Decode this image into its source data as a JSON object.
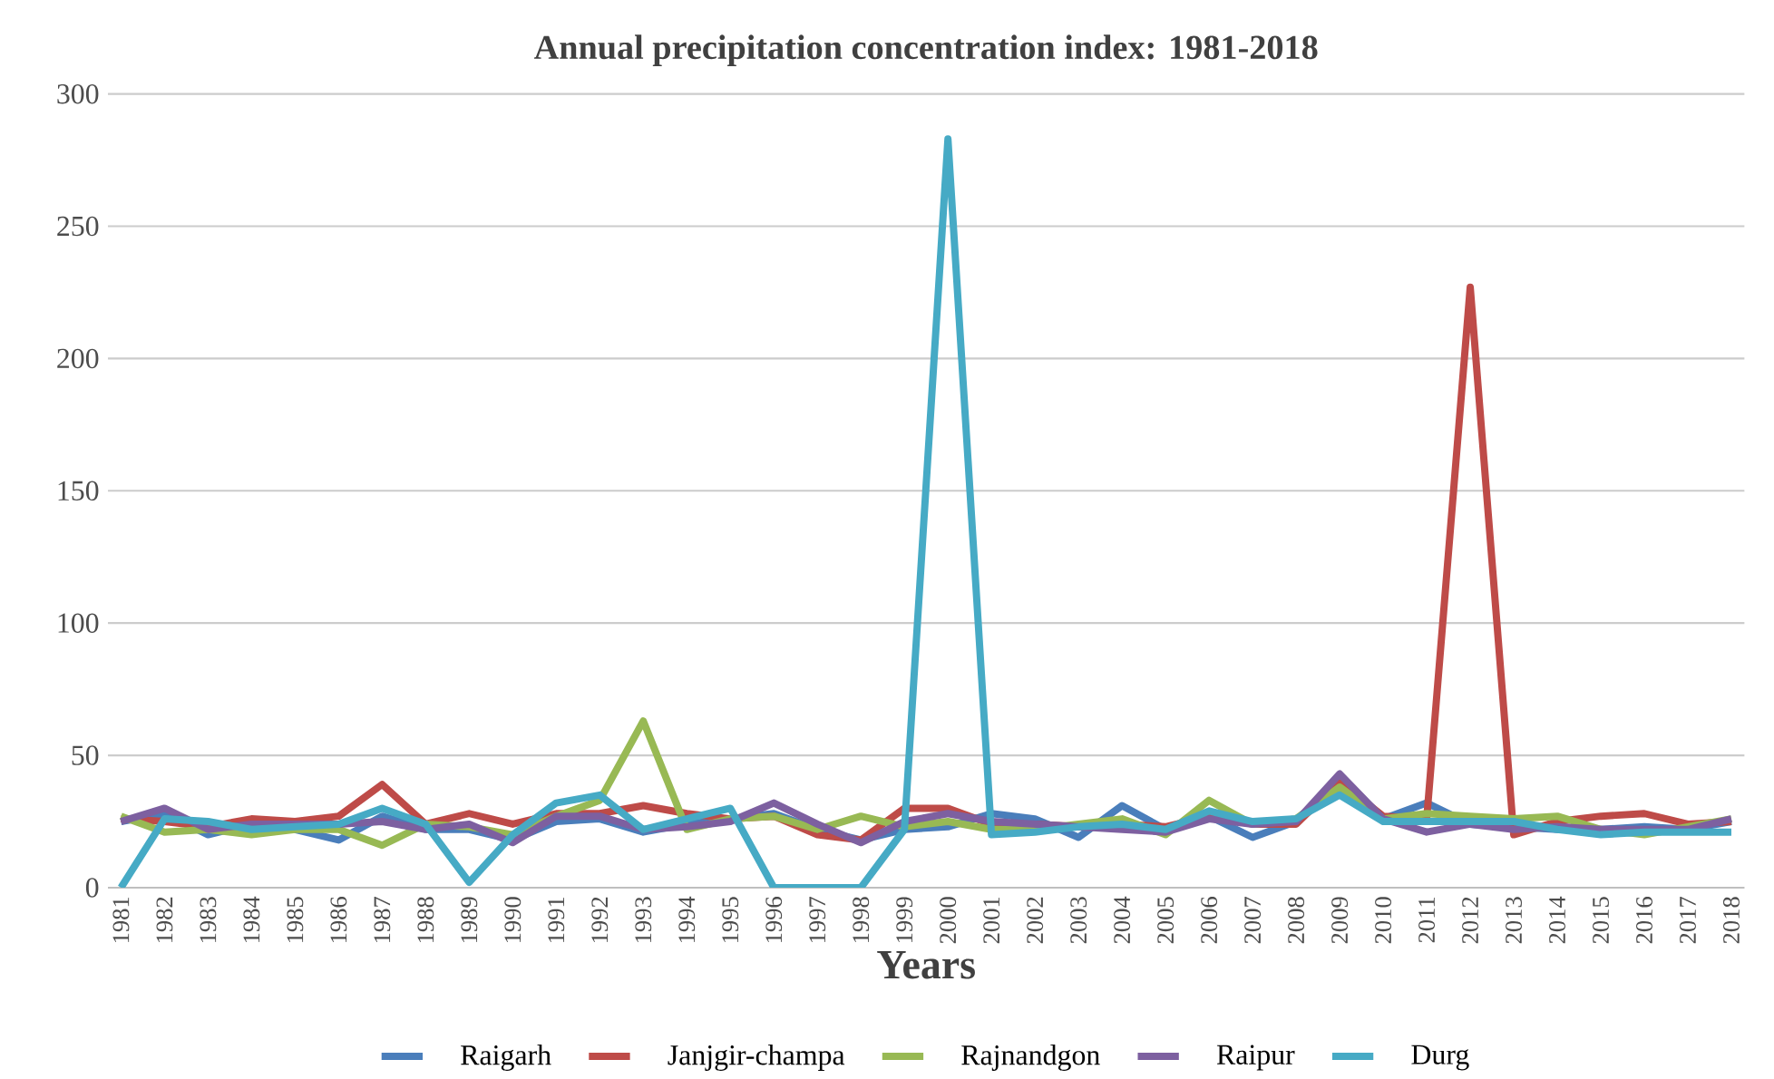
{
  "chart_data": {
    "type": "line",
    "title": "Annual precipitation concentration index: 1981-2018",
    "xlabel": "Years",
    "categories": [
      "1981",
      "1982",
      "1983",
      "1984",
      "1985",
      "1986",
      "1987",
      "1988",
      "1989",
      "1990",
      "1991",
      "1992",
      "1993",
      "1994",
      "1995",
      "1996",
      "1997",
      "1998",
      "1999",
      "2000",
      "2001",
      "2002",
      "2003",
      "2004",
      "2005",
      "2006",
      "2007",
      "2008",
      "2009",
      "2010",
      "2011",
      "2012",
      "2013",
      "2014",
      "2015",
      "2016",
      "2017",
      "2018"
    ],
    "series": [
      {
        "name": "Raigarh",
        "color": "#4a7ebb",
        "values": [
          25,
          28,
          20,
          24,
          22,
          18,
          27,
          22,
          22,
          18,
          25,
          26,
          21,
          24,
          26,
          28,
          22,
          18,
          22,
          23,
          28,
          26,
          19,
          31,
          22,
          27,
          19,
          25,
          38,
          26,
          32,
          24,
          23,
          22,
          22,
          23,
          22,
          25
        ]
      },
      {
        "name": "Janjgir-champa",
        "color": "#be4b48",
        "values": [
          26,
          25,
          23,
          26,
          25,
          27,
          39,
          24,
          28,
          24,
          28,
          28,
          31,
          28,
          26,
          27,
          20,
          18,
          30,
          30,
          24,
          24,
          23,
          24,
          23,
          27,
          24,
          24,
          40,
          27,
          26,
          227,
          20,
          25,
          27,
          28,
          24,
          25
        ]
      },
      {
        "name": "Rajnandgon",
        "color": "#98b954",
        "values": [
          27,
          21,
          22,
          20,
          22,
          22,
          16,
          24,
          23,
          20,
          27,
          33,
          63,
          22,
          26,
          27,
          22,
          27,
          23,
          25,
          22,
          22,
          24,
          26,
          20,
          33,
          24,
          26,
          38,
          26,
          28,
          27,
          26,
          27,
          22,
          20,
          23,
          26
        ]
      },
      {
        "name": "Raipur",
        "color": "#7d60a0",
        "values": [
          25,
          30,
          22,
          24,
          24,
          24,
          25,
          22,
          24,
          17,
          27,
          27,
          22,
          23,
          25,
          32,
          24,
          17,
          25,
          28,
          25,
          24,
          23,
          22,
          21,
          26,
          24,
          25,
          43,
          26,
          21,
          24,
          22,
          23,
          22,
          22,
          22,
          26
        ]
      },
      {
        "name": "Durg",
        "color": "#46aac5",
        "values": [
          0,
          26,
          25,
          22,
          23,
          24,
          30,
          24,
          2,
          20,
          32,
          35,
          22,
          26,
          30,
          0,
          0,
          0,
          22,
          283,
          20,
          21,
          23,
          24,
          22,
          29,
          25,
          26,
          35,
          25,
          25,
          25,
          25,
          22,
          20,
          21,
          21,
          21
        ]
      }
    ],
    "ylim": [
      0,
      300
    ],
    "yticks": [
      0,
      50,
      100,
      150,
      200,
      250,
      300
    ],
    "grid": "y",
    "legend": "bottom",
    "marker": "none",
    "line_style": "solid"
  }
}
